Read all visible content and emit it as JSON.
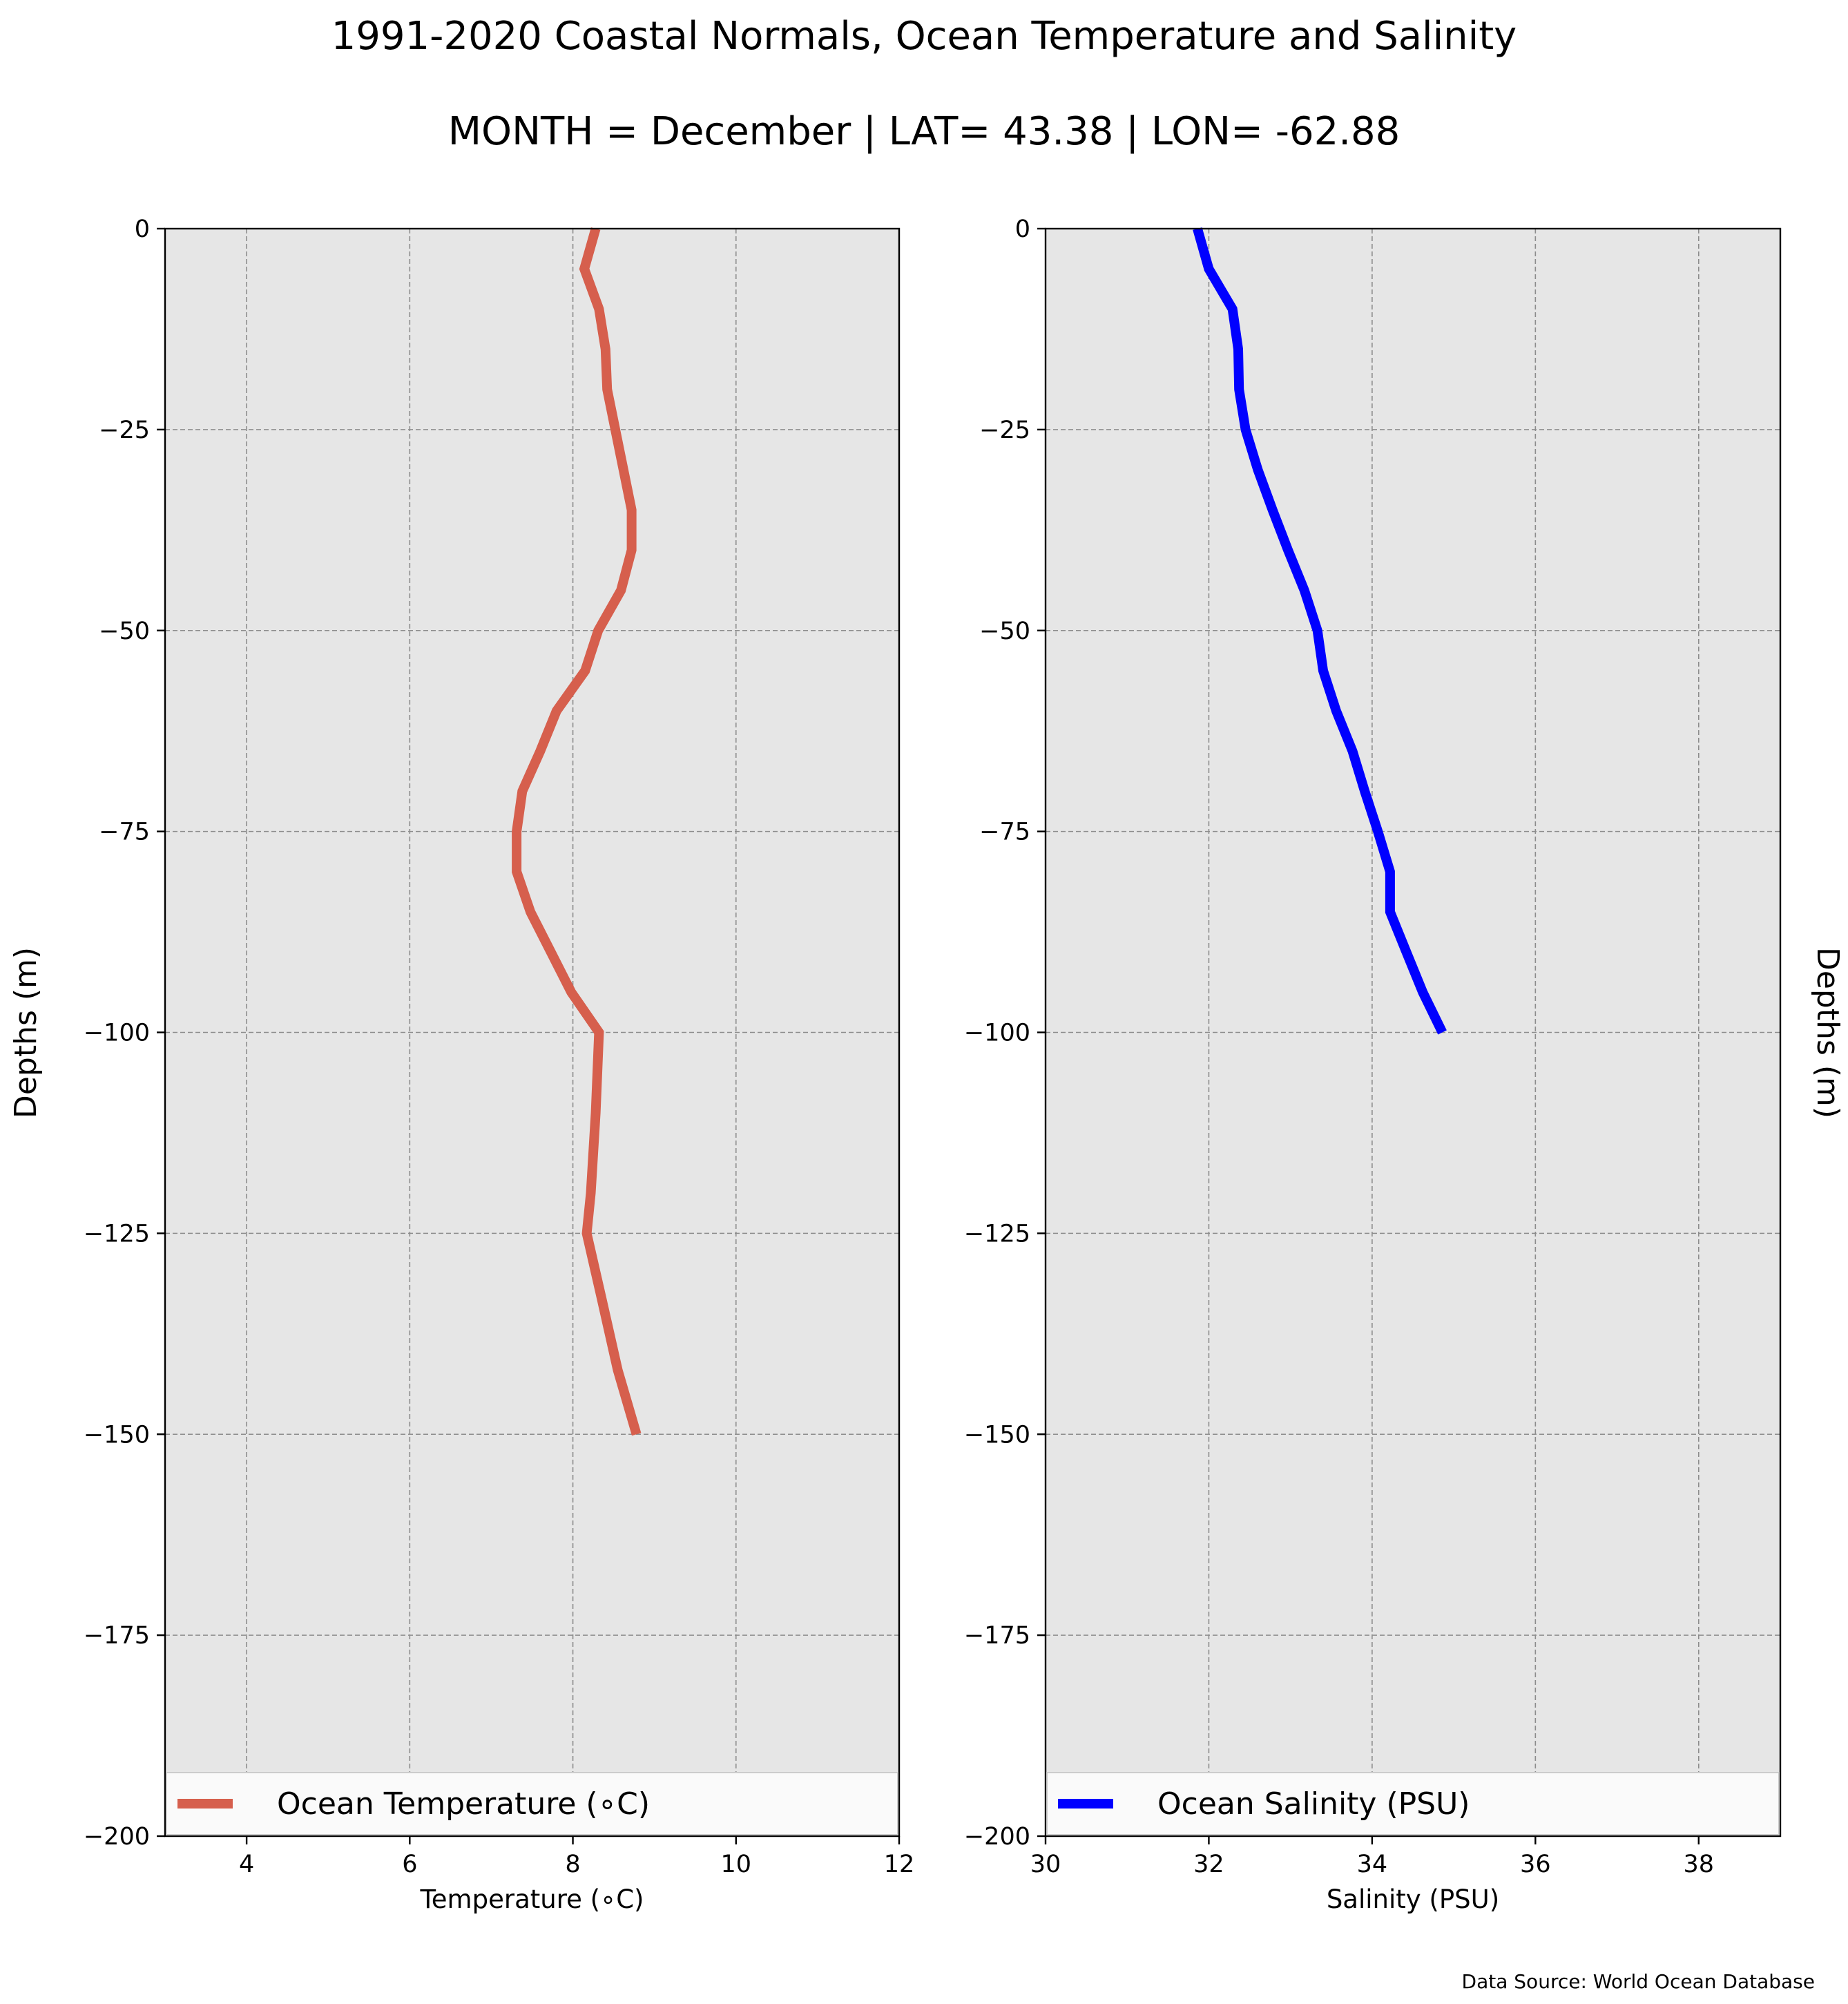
{
  "figure": {
    "title": "1991-2020 Coastal Normals, Ocean Temperature and Salinity",
    "subtitle": "MONTH = December | LAT= 43.38 | LON= -62.88",
    "source": "Data Source: World Ocean Database"
  },
  "chart_data": [
    {
      "type": "line",
      "orientation": "vertical-profile",
      "xlabel": "Temperature (∘C)",
      "ylabel": "Depths (m)",
      "xlim": [
        3,
        12
      ],
      "ylim": [
        -200,
        0
      ],
      "xticks": [
        4,
        6,
        8,
        10,
        12
      ],
      "yticks": [
        0,
        -25,
        -50,
        -75,
        -100,
        -125,
        -150,
        -175,
        -200
      ],
      "grid": true,
      "legend_position": "bottom",
      "series": [
        {
          "name": "Ocean Temperature (∘C)",
          "color": "#d65f4d",
          "x": [
            8.28,
            8.14,
            8.32,
            8.4,
            8.42,
            8.52,
            8.62,
            8.72,
            8.72,
            8.59,
            8.31,
            8.15,
            7.8,
            7.6,
            7.38,
            7.31,
            7.31,
            7.48,
            7.73,
            7.98,
            8.32,
            8.28,
            8.22,
            8.17,
            8.35,
            8.55,
            8.78
          ],
          "y": [
            0,
            -5,
            -10,
            -15,
            -20,
            -25,
            -30,
            -35,
            -40,
            -45,
            -50,
            -55,
            -60,
            -65,
            -70,
            -75,
            -80,
            -85,
            -90,
            -95,
            -100,
            -110,
            -120,
            -125,
            -133,
            -142,
            -150
          ]
        }
      ]
    },
    {
      "type": "line",
      "orientation": "vertical-profile",
      "xlabel": "Salinity (PSU)",
      "ylabel": "Depths (m)",
      "xlim": [
        30,
        39
      ],
      "ylim": [
        -200,
        0
      ],
      "xticks": [
        30,
        32,
        34,
        36,
        38
      ],
      "yticks": [
        0,
        -25,
        -50,
        -75,
        -100,
        -125,
        -150,
        -175,
        -200
      ],
      "grid": true,
      "legend_position": "bottom",
      "series": [
        {
          "name": "Ocean Salinity (PSU)",
          "color": "#0000ff",
          "x": [
            31.86,
            32.0,
            32.29,
            32.36,
            32.37,
            32.45,
            32.6,
            32.78,
            32.97,
            33.17,
            33.33,
            33.4,
            33.56,
            33.76,
            33.91,
            34.07,
            34.22,
            34.22,
            34.42,
            34.62,
            34.86
          ],
          "y": [
            0,
            -5,
            -10,
            -15,
            -20,
            -25,
            -30,
            -35,
            -40,
            -45,
            -50,
            -55,
            -60,
            -65,
            -70,
            -75,
            -80,
            -85,
            -90,
            -95,
            -100
          ]
        }
      ]
    }
  ]
}
